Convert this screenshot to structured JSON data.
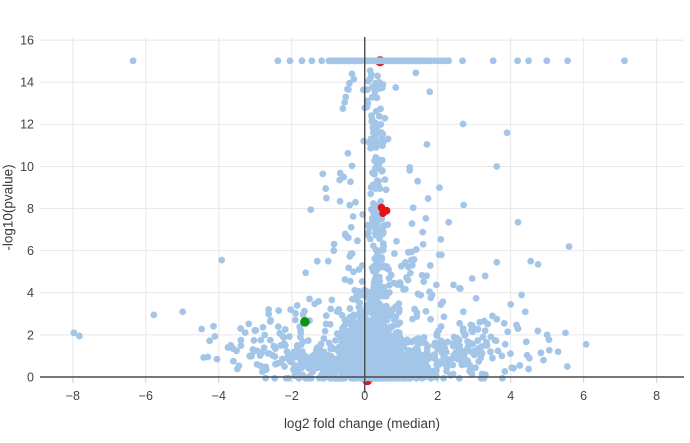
{
  "chart_data": {
    "type": "scatter",
    "variant": "volcano-plot",
    "title": "",
    "xlabel": "log2 fold change (median)",
    "ylabel": "-log10(pvalue)",
    "xlim": [
      -8.9,
      8.75
    ],
    "ylim": [
      0,
      16.15
    ],
    "grid": true,
    "legend": "none",
    "xticks": [
      {
        "v": -8,
        "label": "−8"
      },
      {
        "v": -6,
        "label": "−6"
      },
      {
        "v": -4,
        "label": "−4"
      },
      {
        "v": -2,
        "label": "−2"
      },
      {
        "v": 0,
        "label": "0"
      },
      {
        "v": 2,
        "label": "2"
      },
      {
        "v": 4,
        "label": "4"
      },
      {
        "v": 6,
        "label": "6"
      },
      {
        "v": 8,
        "label": "8"
      }
    ],
    "yticks": [
      {
        "v": 0,
        "label": "0"
      },
      {
        "v": 2,
        "label": "2"
      },
      {
        "v": 4,
        "label": "4"
      },
      {
        "v": 6,
        "label": "6"
      },
      {
        "v": 8,
        "label": "8"
      },
      {
        "v": 10,
        "label": "10"
      },
      {
        "v": 12,
        "label": "12"
      },
      {
        "v": 14,
        "label": "14"
      },
      {
        "v": 16,
        "label": "16"
      }
    ],
    "colors": {
      "point": "#a3c6e8",
      "significant_red": "#e41117",
      "highlight_green": "#119111",
      "grid": "#e8e8e8",
      "axis_line": "#4a4a4a",
      "tick_color": "#cfcfcf",
      "tick_text": "#444444",
      "title_text": "#3b3b3b",
      "background": "#ffffff"
    },
    "marker": {
      "radius": 3.4
    },
    "zeroline": {
      "y": 0
    },
    "vline": {
      "x": 0,
      "y_from": -0.75,
      "y_to": 16.15
    },
    "pvalue_cap": 15,
    "capped_row": {
      "y": 15.02,
      "segments": [
        {
          "from": -0.98,
          "to": -0.04,
          "step": 0.05
        },
        {
          "from": 0.04,
          "to": 1.54,
          "step": 0.05
        }
      ],
      "dots": [
        -6.35,
        -2.38,
        -2.05,
        -1.72,
        -1.45,
        -1.18,
        1.62,
        1.7,
        1.8,
        1.92,
        2.02,
        2.12,
        2.22,
        2.3,
        2.68,
        3.52,
        4.19,
        4.49,
        4.99,
        5.56,
        7.12
      ]
    },
    "outlier_points": [
      [
        -7.97,
        2.1
      ],
      [
        -7.82,
        1.95
      ],
      [
        -5.78,
        2.95
      ],
      [
        -4.99,
        3.1
      ],
      [
        -4.47,
        2.28
      ],
      [
        -4.3,
        0.95
      ],
      [
        -4.25,
        1.72
      ],
      [
        -4.05,
        0.85
      ],
      [
        -3.92,
        5.55
      ],
      [
        -3.75,
        1.4
      ],
      [
        -3.6,
        0.75
      ],
      [
        -3.4,
        2.3
      ],
      [
        -3.15,
        1.0
      ],
      [
        -2.95,
        0.6
      ],
      [
        -2.85,
        1.75
      ],
      [
        -2.7,
        0.35
      ],
      [
        -2.58,
        2.7
      ],
      [
        -2.45,
        1.35
      ],
      [
        -2.2,
        0.5
      ],
      [
        -2.03,
        3.2
      ],
      [
        -1.9,
        1.05
      ],
      [
        -1.75,
        2.1
      ],
      [
        -1.62,
        4.95
      ],
      [
        -1.48,
        7.95
      ],
      [
        -1.3,
        5.5
      ],
      [
        -1.15,
        9.65
      ],
      [
        -1.07,
        8.95
      ],
      [
        -1.05,
        8.5
      ],
      [
        -1.0,
        5.5
      ],
      [
        -0.85,
        6.0
      ],
      [
        -0.35,
        14.4
      ],
      [
        -0.3,
        14.15
      ],
      [
        -0.42,
        13.95
      ],
      [
        -0.52,
        13.3
      ],
      [
        -0.55,
        13.05
      ],
      [
        -0.6,
        12.75
      ],
      [
        0.15,
        14.55
      ],
      [
        0.35,
        14.3
      ],
      [
        0.1,
        14.05
      ],
      [
        0.5,
        13.9
      ],
      [
        0.85,
        13.75
      ],
      [
        1.4,
        14.45
      ],
      [
        1.78,
        13.55
      ],
      [
        3.9,
        11.6
      ],
      [
        3.62,
        10.0
      ],
      [
        2.3,
        7.35
      ],
      [
        4.2,
        7.35
      ],
      [
        1.45,
        9.3
      ],
      [
        1.6,
        6.3
      ],
      [
        2.1,
        5.8
      ],
      [
        5.6,
        6.2
      ],
      [
        3.62,
        5.45
      ],
      [
        4.55,
        5.5
      ],
      [
        4.75,
        5.35
      ],
      [
        3.3,
        4.8
      ],
      [
        2.62,
        4.2
      ],
      [
        4.3,
        3.9
      ],
      [
        4.0,
        3.45
      ],
      [
        4.4,
        3.1
      ],
      [
        3.5,
        2.9
      ],
      [
        3.15,
        2.6
      ],
      [
        2.6,
        2.55
      ],
      [
        3.3,
        2.2
      ],
      [
        4.2,
        2.3
      ],
      [
        2.45,
        1.9
      ],
      [
        2.9,
        1.6
      ],
      [
        3.35,
        1.5
      ],
      [
        2.6,
        1.3
      ],
      [
        3.0,
        1.05
      ],
      [
        3.5,
        0.9
      ],
      [
        2.3,
        0.75
      ],
      [
        2.75,
        0.6
      ],
      [
        4.25,
        0.55
      ],
      [
        5.0,
        2.0
      ],
      [
        5.3,
        1.2
      ],
      [
        4.9,
        0.8
      ],
      [
        5.55,
        0.5
      ]
    ],
    "red_points_behind": [
      [
        0.42,
        15.0,
        5.0
      ],
      [
        0.04,
        2.3,
        4.0
      ],
      [
        0.07,
        -0.15,
        5.0
      ]
    ],
    "blue_occluders": [
      [
        0.24,
        2.28,
        4.0
      ],
      [
        0.07,
        0.2,
        5.0
      ]
    ],
    "red_points_front": [
      [
        0.46,
        8.05,
        3.8
      ],
      [
        0.6,
        7.9,
        3.8
      ],
      [
        0.5,
        7.78,
        3.8
      ]
    ],
    "green_points": [
      [
        -1.64,
        2.62,
        4.8
      ]
    ],
    "seed": 1337,
    "density_clusters": [
      {
        "n": 420,
        "cx": 0.12,
        "cy": 0.35,
        "sx": 0.5,
        "sy": 0.28
      },
      {
        "n": 260,
        "cx": 0.15,
        "cy": 0.95,
        "sx": 0.48,
        "sy": 0.35
      },
      {
        "n": 160,
        "cx": 0.12,
        "cy": 1.7,
        "sx": 0.5,
        "sy": 0.42
      },
      {
        "n": 100,
        "cx": 0.18,
        "cy": 2.5,
        "sx": 0.5,
        "sy": 0.5
      },
      {
        "n": 60,
        "cx": 0.25,
        "cy": 3.4,
        "sx": 0.45,
        "sy": 0.55
      },
      {
        "n": 36,
        "cx": 0.3,
        "cy": 4.4,
        "sx": 0.4,
        "sy": 0.6
      },
      {
        "n": 46,
        "cx": 0.38,
        "cy": 6.0,
        "sx": 0.14,
        "sy": 1.0,
        "ymax": 14.45
      },
      {
        "n": 40,
        "cx": 0.36,
        "cy": 8.3,
        "sx": 0.13,
        "sy": 1.1,
        "ymax": 14.45
      },
      {
        "n": 40,
        "cx": 0.35,
        "cy": 11.0,
        "sx": 0.14,
        "sy": 1.3,
        "ymax": 14.45
      },
      {
        "n": 26,
        "cx": 0.3,
        "cy": 13.3,
        "sx": 0.16,
        "sy": 0.8,
        "ymax": 14.45
      },
      {
        "n": 26,
        "cx": -0.45,
        "cy": 7.5,
        "sx": 0.25,
        "sy": 2.6,
        "ymax": 14.45
      },
      {
        "n": 22,
        "cx": 1.2,
        "cy": 5.2,
        "sx": 0.4,
        "sy": 1.2
      },
      {
        "n": 14,
        "cx": 1.5,
        "cy": 8.5,
        "sx": 0.5,
        "sy": 1.8,
        "ymax": 14.45
      },
      {
        "n": 110,
        "cx": -0.85,
        "cy": 0.5,
        "sx": 0.5,
        "sy": 0.4
      },
      {
        "n": 70,
        "cx": -1.5,
        "cy": 0.8,
        "sx": 0.55,
        "sy": 0.55
      },
      {
        "n": 40,
        "cx": -2.3,
        "cy": 1.1,
        "sx": 0.6,
        "sy": 0.65
      },
      {
        "n": 18,
        "cx": -3.2,
        "cy": 1.4,
        "sx": 0.55,
        "sy": 0.7
      },
      {
        "n": 130,
        "cx": 1.1,
        "cy": 0.55,
        "sx": 0.55,
        "sy": 0.42
      },
      {
        "n": 85,
        "cx": 1.8,
        "cy": 0.9,
        "sx": 0.6,
        "sy": 0.6
      },
      {
        "n": 48,
        "cx": 2.7,
        "cy": 1.2,
        "sx": 0.65,
        "sy": 0.7
      },
      {
        "n": 22,
        "cx": 3.7,
        "cy": 1.5,
        "sx": 0.6,
        "sy": 0.75
      },
      {
        "n": 8,
        "cx": 4.8,
        "cy": 1.4,
        "sx": 0.5,
        "sy": 0.8
      },
      {
        "n": 26,
        "cx": -1.6,
        "cy": 2.8,
        "sx": 0.7,
        "sy": 0.9
      },
      {
        "n": 30,
        "cx": 1.9,
        "cy": 3.0,
        "sx": 0.8,
        "sy": 1.0
      }
    ]
  }
}
